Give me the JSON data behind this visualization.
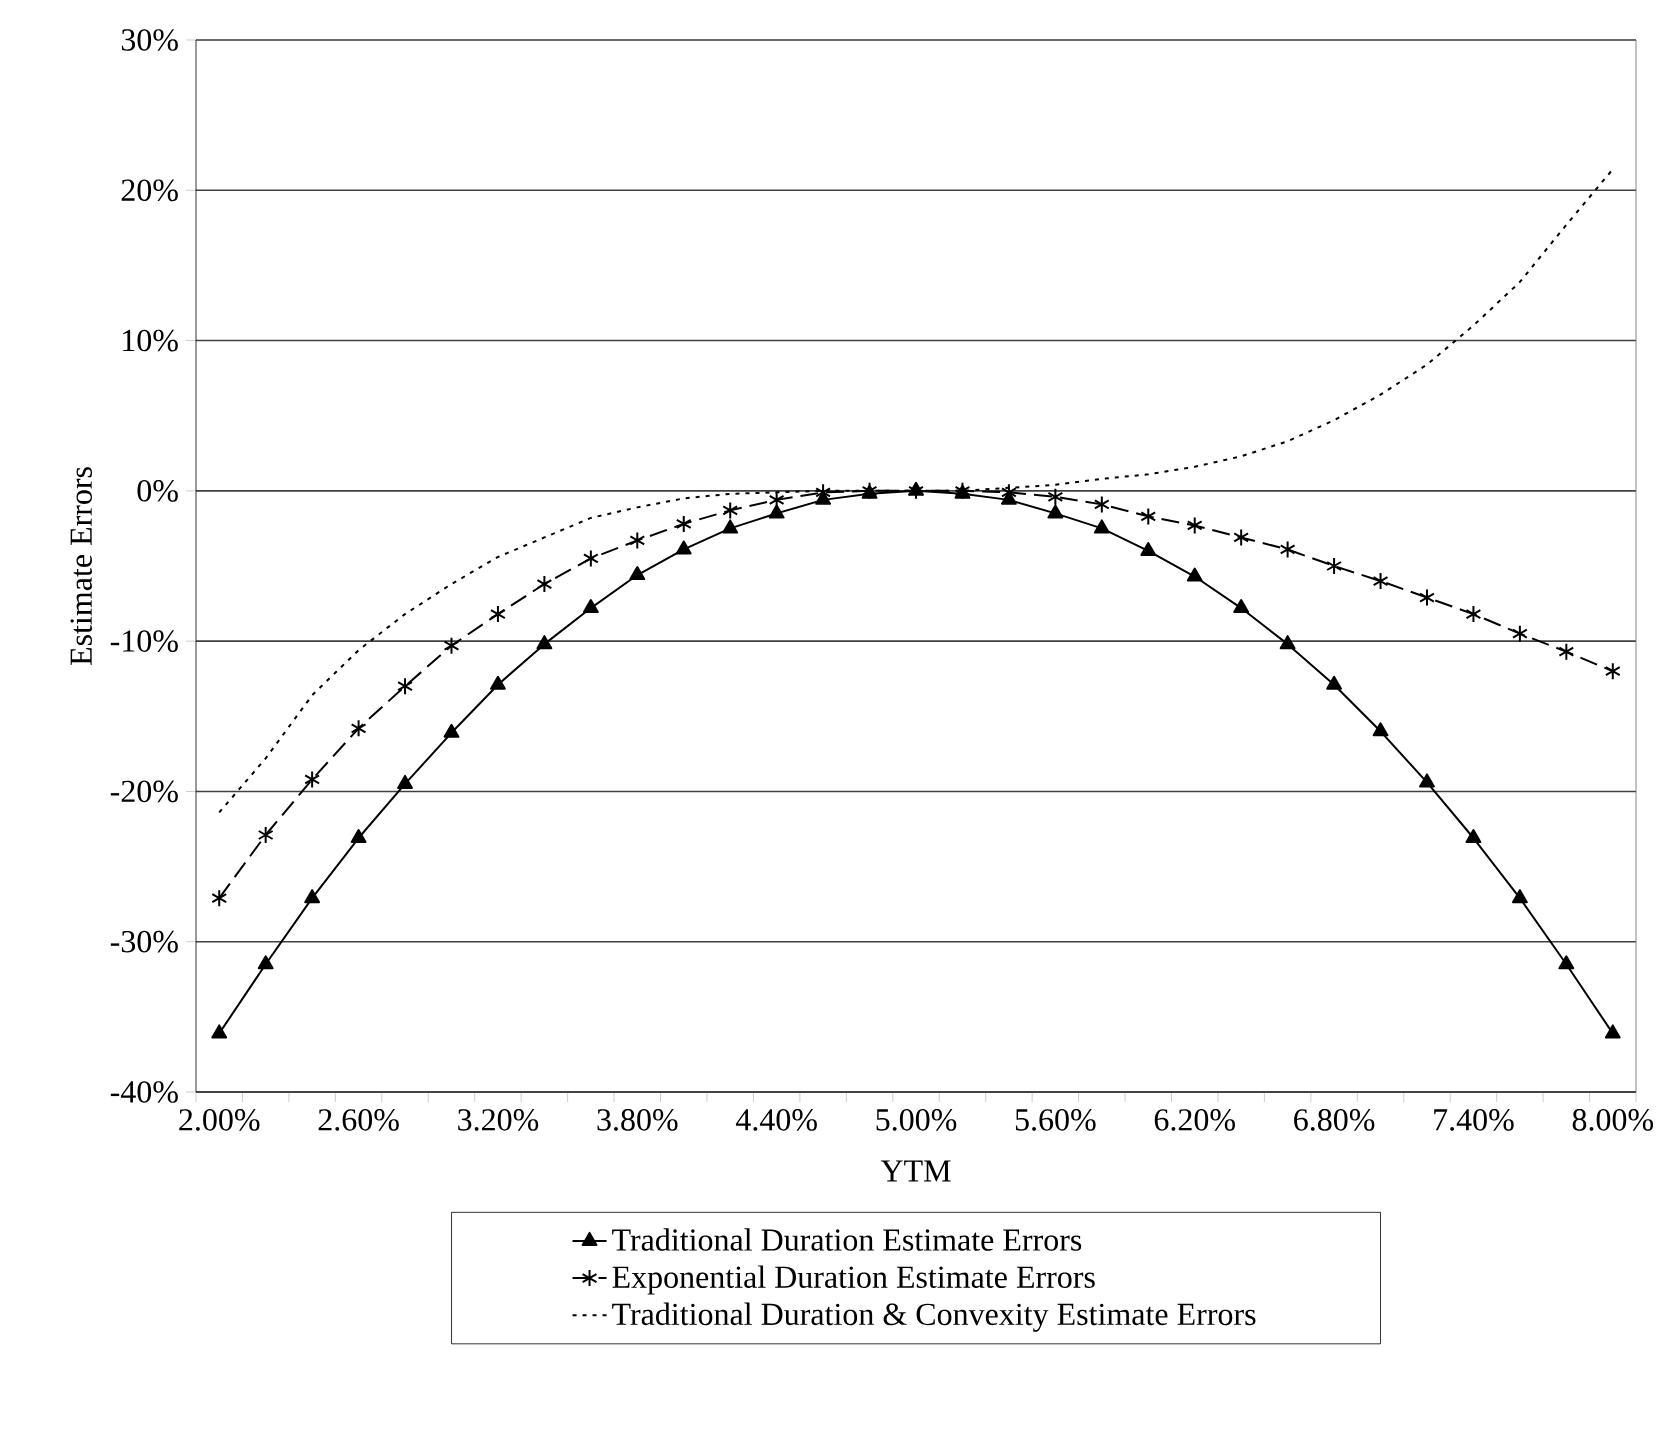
{
  "chart_data": {
    "type": "line",
    "xlabel": "YTM",
    "ylabel": "Estimate Errors",
    "categories": [
      "2.00%",
      null,
      null,
      "2.60%",
      null,
      null,
      "3.20%",
      null,
      null,
      "3.80%",
      null,
      null,
      "4.40%",
      null,
      null,
      "5.00%",
      null,
      null,
      "5.60%",
      null,
      null,
      "6.20%",
      null,
      null,
      "6.80%",
      null,
      null,
      "7.40%",
      null,
      null,
      "8.00%"
    ],
    "series": [
      {
        "name": "Traditional Duration Estimate Errors",
        "color": "#000000",
        "marker": "triangle",
        "line_style": "solid",
        "values": [
          -36.1,
          -31.5,
          -27.1,
          -23.1,
          -19.5,
          -16.1,
          -12.9,
          -10.2,
          -7.8,
          -5.6,
          -3.9,
          -2.5,
          -1.5,
          -0.6,
          -0.2,
          0,
          -0.2,
          -0.6,
          -1.5,
          -2.5,
          -4.0,
          -5.7,
          -7.8,
          -10.2,
          -12.9,
          -16.0,
          -19.4,
          -23.1,
          -27.1,
          -31.5,
          -36.1
        ]
      },
      {
        "name": "Exponential Duration Estimate Errors",
        "color": "#000000",
        "marker": "cross",
        "line_style": "dashed",
        "values": [
          -27.1,
          -22.9,
          -19.2,
          -15.8,
          -13.0,
          -10.3,
          -8.2,
          -6.2,
          -4.5,
          -3.3,
          -2.2,
          -1.3,
          -0.6,
          -0.1,
          0,
          0,
          0,
          -0.1,
          -0.4,
          -0.9,
          -1.7,
          -2.3,
          -3.1,
          -3.9,
          -5.0,
          -6.0,
          -7.1,
          -8.2,
          -9.5,
          -10.7,
          -12.0
        ]
      },
      {
        "name": "Traditional Duration & Convexity Estimate Errors",
        "color": "#000000",
        "marker": "none",
        "line_style": "dotted",
        "values": [
          -21.4,
          -17.8,
          -13.6,
          -10.6,
          -8.2,
          -6.2,
          -4.4,
          -3.1,
          -1.8,
          -1.1,
          -0.5,
          -0.2,
          -0.1,
          0,
          0,
          0,
          0,
          0.2,
          0.4,
          0.8,
          1.1,
          1.6,
          2.3,
          3.3,
          4.7,
          6.4,
          8.4,
          11.0,
          13.9,
          17.7,
          21.4
        ]
      }
    ],
    "ylim": [
      -40,
      30
    ],
    "yticks": [
      {
        "value": -40,
        "label": "-40%"
      },
      {
        "value": -30,
        "label": "-30%"
      },
      {
        "value": -20,
        "label": "-20%"
      },
      {
        "value": -10,
        "label": "-10%"
      },
      {
        "value": 0,
        "label": "0%"
      },
      {
        "value": 10,
        "label": "10%"
      },
      {
        "value": 20,
        "label": "20%"
      },
      {
        "value": 30,
        "label": "30%"
      }
    ],
    "grid": "y",
    "legend": "bottom"
  }
}
